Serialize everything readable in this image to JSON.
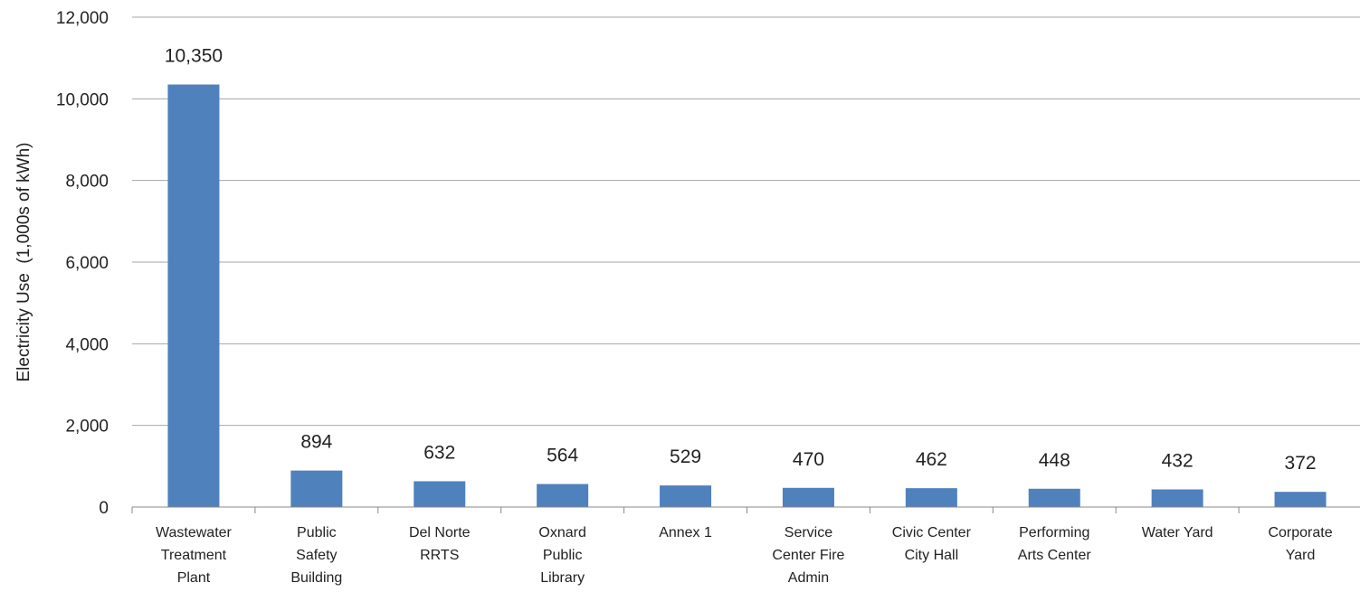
{
  "chart_data": {
    "type": "bar",
    "title": "",
    "xlabel": "",
    "ylabel": "Electricity Use  (1,000s of kWh)",
    "ylim": [
      0,
      12000
    ],
    "yticks": [
      0,
      2000,
      4000,
      6000,
      8000,
      10000,
      12000
    ],
    "ytick_labels": [
      "0",
      "2,000",
      "4,000",
      "6,000",
      "8,000",
      "10,000",
      "12,000"
    ],
    "grid": true,
    "legend": "none",
    "bar_color": "#4f81bd",
    "categories": [
      [
        "Wastewater",
        "Treatment",
        "Plant"
      ],
      [
        "Public",
        "Safety",
        "Building"
      ],
      [
        "Del Norte",
        "RRTS"
      ],
      [
        "Oxnard",
        "Public",
        "Library"
      ],
      [
        "Annex 1"
      ],
      [
        "Service",
        "Center Fire",
        "Admin"
      ],
      [
        "Civic Center",
        "City Hall"
      ],
      [
        "Performing",
        "Arts Center"
      ],
      [
        "Water Yard"
      ],
      [
        "Corporate",
        "Yard"
      ]
    ],
    "values": [
      10350,
      894,
      632,
      564,
      529,
      470,
      462,
      448,
      432,
      372
    ],
    "data_labels": [
      "10,350",
      "894",
      "632",
      "564",
      "529",
      "470",
      "462",
      "448",
      "432",
      "372"
    ]
  }
}
